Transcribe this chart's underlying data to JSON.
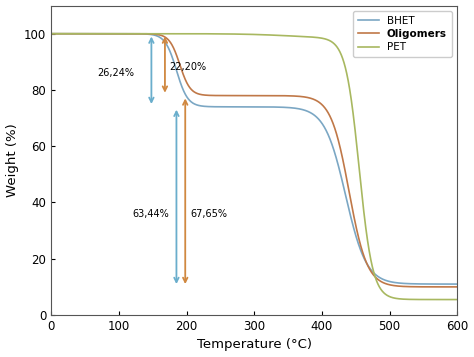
{
  "title": "",
  "xlabel": "Temperature (°C)",
  "ylabel": "Weight (%)",
  "xlim": [
    0,
    600
  ],
  "ylim": [
    0,
    110
  ],
  "legend_labels": [
    "BHET",
    "Oligomers",
    "PET"
  ],
  "line_colors": {
    "BHET": "#7ba7c4",
    "Oligomers": "#c07848",
    "PET": "#a8b860"
  },
  "arrow_blue": "#6aaecc",
  "arrow_orange": "#d08840",
  "annot_26": "26,24%",
  "annot_22": "22,20%",
  "annot_63": "63,44%",
  "annot_67": "67,65%",
  "background_color": "#ffffff"
}
